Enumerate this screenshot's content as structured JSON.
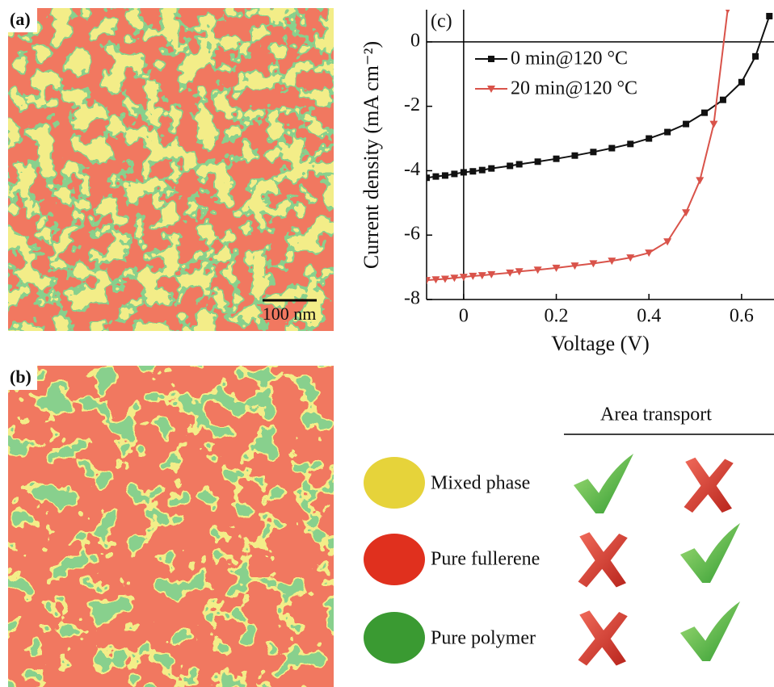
{
  "panel_a": {
    "label": "(a)",
    "scale_bar": "100 nm"
  },
  "panel_b": {
    "label": "(b)"
  },
  "chart_data": {
    "type": "line",
    "label": "(c)",
    "xlabel": "Voltage (V)",
    "ylabel": "Current density (mA cm⁻²)",
    "xlim": [
      -0.08,
      0.67
    ],
    "ylim": [
      -8,
      1
    ],
    "xticks": [
      0,
      0.2,
      0.4,
      0.6
    ],
    "yticks": [
      -8,
      -6,
      -4,
      -2,
      0
    ],
    "series": [
      {
        "name": "0 min@120 °C",
        "color": "#111111",
        "marker": "square",
        "x": [
          -0.08,
          -0.06,
          -0.04,
          -0.02,
          0,
          0.02,
          0.04,
          0.06,
          0.1,
          0.12,
          0.16,
          0.2,
          0.24,
          0.28,
          0.32,
          0.36,
          0.4,
          0.44,
          0.48,
          0.52,
          0.56,
          0.6,
          0.63,
          0.66
        ],
        "values": [
          -4.22,
          -4.18,
          -4.15,
          -4.1,
          -4.05,
          -4.02,
          -3.98,
          -3.93,
          -3.85,
          -3.8,
          -3.72,
          -3.63,
          -3.53,
          -3.42,
          -3.3,
          -3.17,
          -3.0,
          -2.8,
          -2.55,
          -2.2,
          -1.8,
          -1.25,
          -0.45,
          0.8
        ]
      },
      {
        "name": "20 min@120 °C",
        "color": "#d9534a",
        "marker": "triangle",
        "x": [
          -0.08,
          -0.06,
          -0.04,
          -0.02,
          0,
          0.02,
          0.04,
          0.06,
          0.1,
          0.12,
          0.16,
          0.2,
          0.24,
          0.28,
          0.32,
          0.36,
          0.4,
          0.44,
          0.48,
          0.51,
          0.54,
          0.57
        ],
        "values": [
          -7.4,
          -7.38,
          -7.36,
          -7.33,
          -7.3,
          -7.27,
          -7.25,
          -7.22,
          -7.17,
          -7.13,
          -7.08,
          -7.02,
          -6.95,
          -6.88,
          -6.8,
          -6.7,
          -6.55,
          -6.2,
          -5.3,
          -4.3,
          -2.55,
          1.0
        ]
      }
    ]
  },
  "table": {
    "header": "Area transport",
    "rows": [
      {
        "label": "Mixed phase"
      },
      {
        "label": "Pure fullerene"
      },
      {
        "label": "Pure polymer"
      }
    ]
  }
}
